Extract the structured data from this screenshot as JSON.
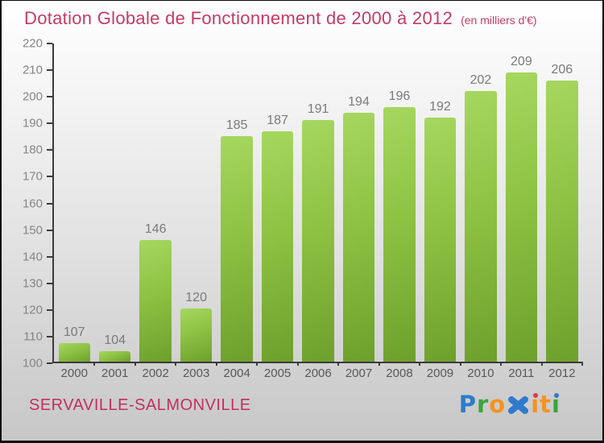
{
  "window": {
    "bg_top": "#ffffff",
    "bg_bottom": "#c7c7c7",
    "border_color": "#0d0d0d"
  },
  "header": {
    "title": "Dotation Globale de Fonctionnement de 2000 à 2012",
    "subtitle": "(en milliers d'€)",
    "title_color": "#c43b67"
  },
  "chart_data": {
    "type": "bar",
    "title": "Dotation Globale de Fonctionnement de 2000 à 2012",
    "unit": "(en milliers d'€)",
    "categories": [
      "2000",
      "2001",
      "2002",
      "2003",
      "2004",
      "2005",
      "2006",
      "2007",
      "2008",
      "2009",
      "2010",
      "2011",
      "2012"
    ],
    "values": [
      107,
      104,
      146,
      120,
      185,
      187,
      191,
      194,
      196,
      192,
      202,
      209,
      206
    ],
    "xlabel": "",
    "ylabel": "",
    "ylim": [
      100,
      220
    ],
    "ytick_step": 10,
    "grid": false,
    "legend": null,
    "colors": {
      "bar_light": "#a6d75f",
      "bar_mid": "#8dc243",
      "bar_dark": "#6da02c",
      "axis": "#3b3b3b",
      "value_label": "#7a7a7a",
      "x_tick_label": "#585858",
      "y_tick_label": "#858585"
    }
  },
  "footer": {
    "location": "SERVAVILLE-SALMONVILLE",
    "location_color": "#c22e60",
    "logo": {
      "name": "Proxiti",
      "letters": [
        {
          "ch": "P",
          "color": "#2d7bca"
        },
        {
          "ch": "r",
          "color": "#3ba43c"
        },
        {
          "ch": "o",
          "color": "#f6921e"
        },
        {
          "ch": "x",
          "color": "#2d7bca",
          "style": "x-mark"
        },
        {
          "ch": "i",
          "color": "#f6921e",
          "dot": "#e13b3b"
        },
        {
          "ch": "t",
          "color": "#f6921e"
        },
        {
          "ch": "i",
          "color": "#3ba43c",
          "dot": "#2d7bca"
        }
      ]
    }
  }
}
